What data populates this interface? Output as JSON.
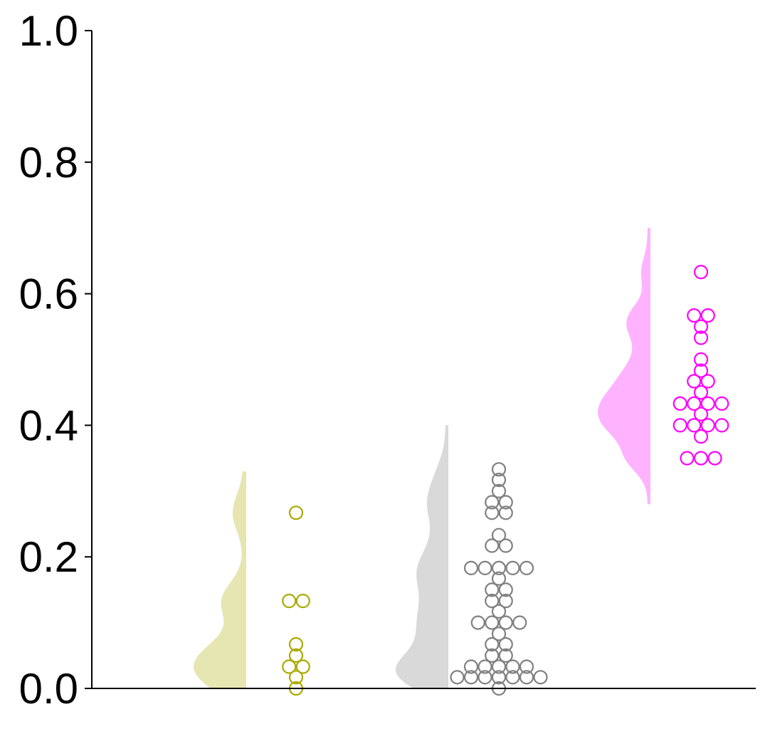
{
  "chart_data": {
    "type": "raincloud",
    "title": "",
    "xlabel": "",
    "ylabel": "",
    "ylim": [
      0,
      1.0
    ],
    "yticks": [
      0.0,
      0.2,
      0.4,
      0.6,
      0.8,
      1.0
    ],
    "ytick_labels": [
      "0.0",
      "0.2",
      "0.4",
      "0.6",
      "0.8",
      "1.0"
    ],
    "grid": false,
    "series": [
      {
        "color": "#aaaa00",
        "fill_color": "#e6e6b3",
        "density_range": [
          0.0,
          0.33
        ],
        "points": [
          0.267,
          0.133,
          0.133,
          0.067,
          0.05,
          0.033,
          0.033,
          0.017,
          0.0
        ]
      },
      {
        "color": "#808080",
        "fill_color": "#d9d9d9",
        "density_range": [
          0.0,
          0.4
        ],
        "points": [
          0.333,
          0.317,
          0.3,
          0.283,
          0.283,
          0.267,
          0.267,
          0.233,
          0.217,
          0.217,
          0.183,
          0.183,
          0.183,
          0.183,
          0.183,
          0.167,
          0.15,
          0.15,
          0.133,
          0.133,
          0.117,
          0.1,
          0.1,
          0.1,
          0.1,
          0.083,
          0.067,
          0.067,
          0.05,
          0.05,
          0.033,
          0.033,
          0.033,
          0.033,
          0.033,
          0.017,
          0.017,
          0.017,
          0.017,
          0.017,
          0.017,
          0.017,
          0.0
        ]
      },
      {
        "color": "#ff00ff",
        "fill_color": "#ffb3ff",
        "density_range": [
          0.28,
          0.7
        ],
        "points": [
          0.633,
          0.567,
          0.567,
          0.55,
          0.533,
          0.5,
          0.483,
          0.467,
          0.467,
          0.45,
          0.433,
          0.433,
          0.433,
          0.433,
          0.417,
          0.4,
          0.4,
          0.4,
          0.4,
          0.383,
          0.35,
          0.35,
          0.35
        ]
      }
    ]
  }
}
